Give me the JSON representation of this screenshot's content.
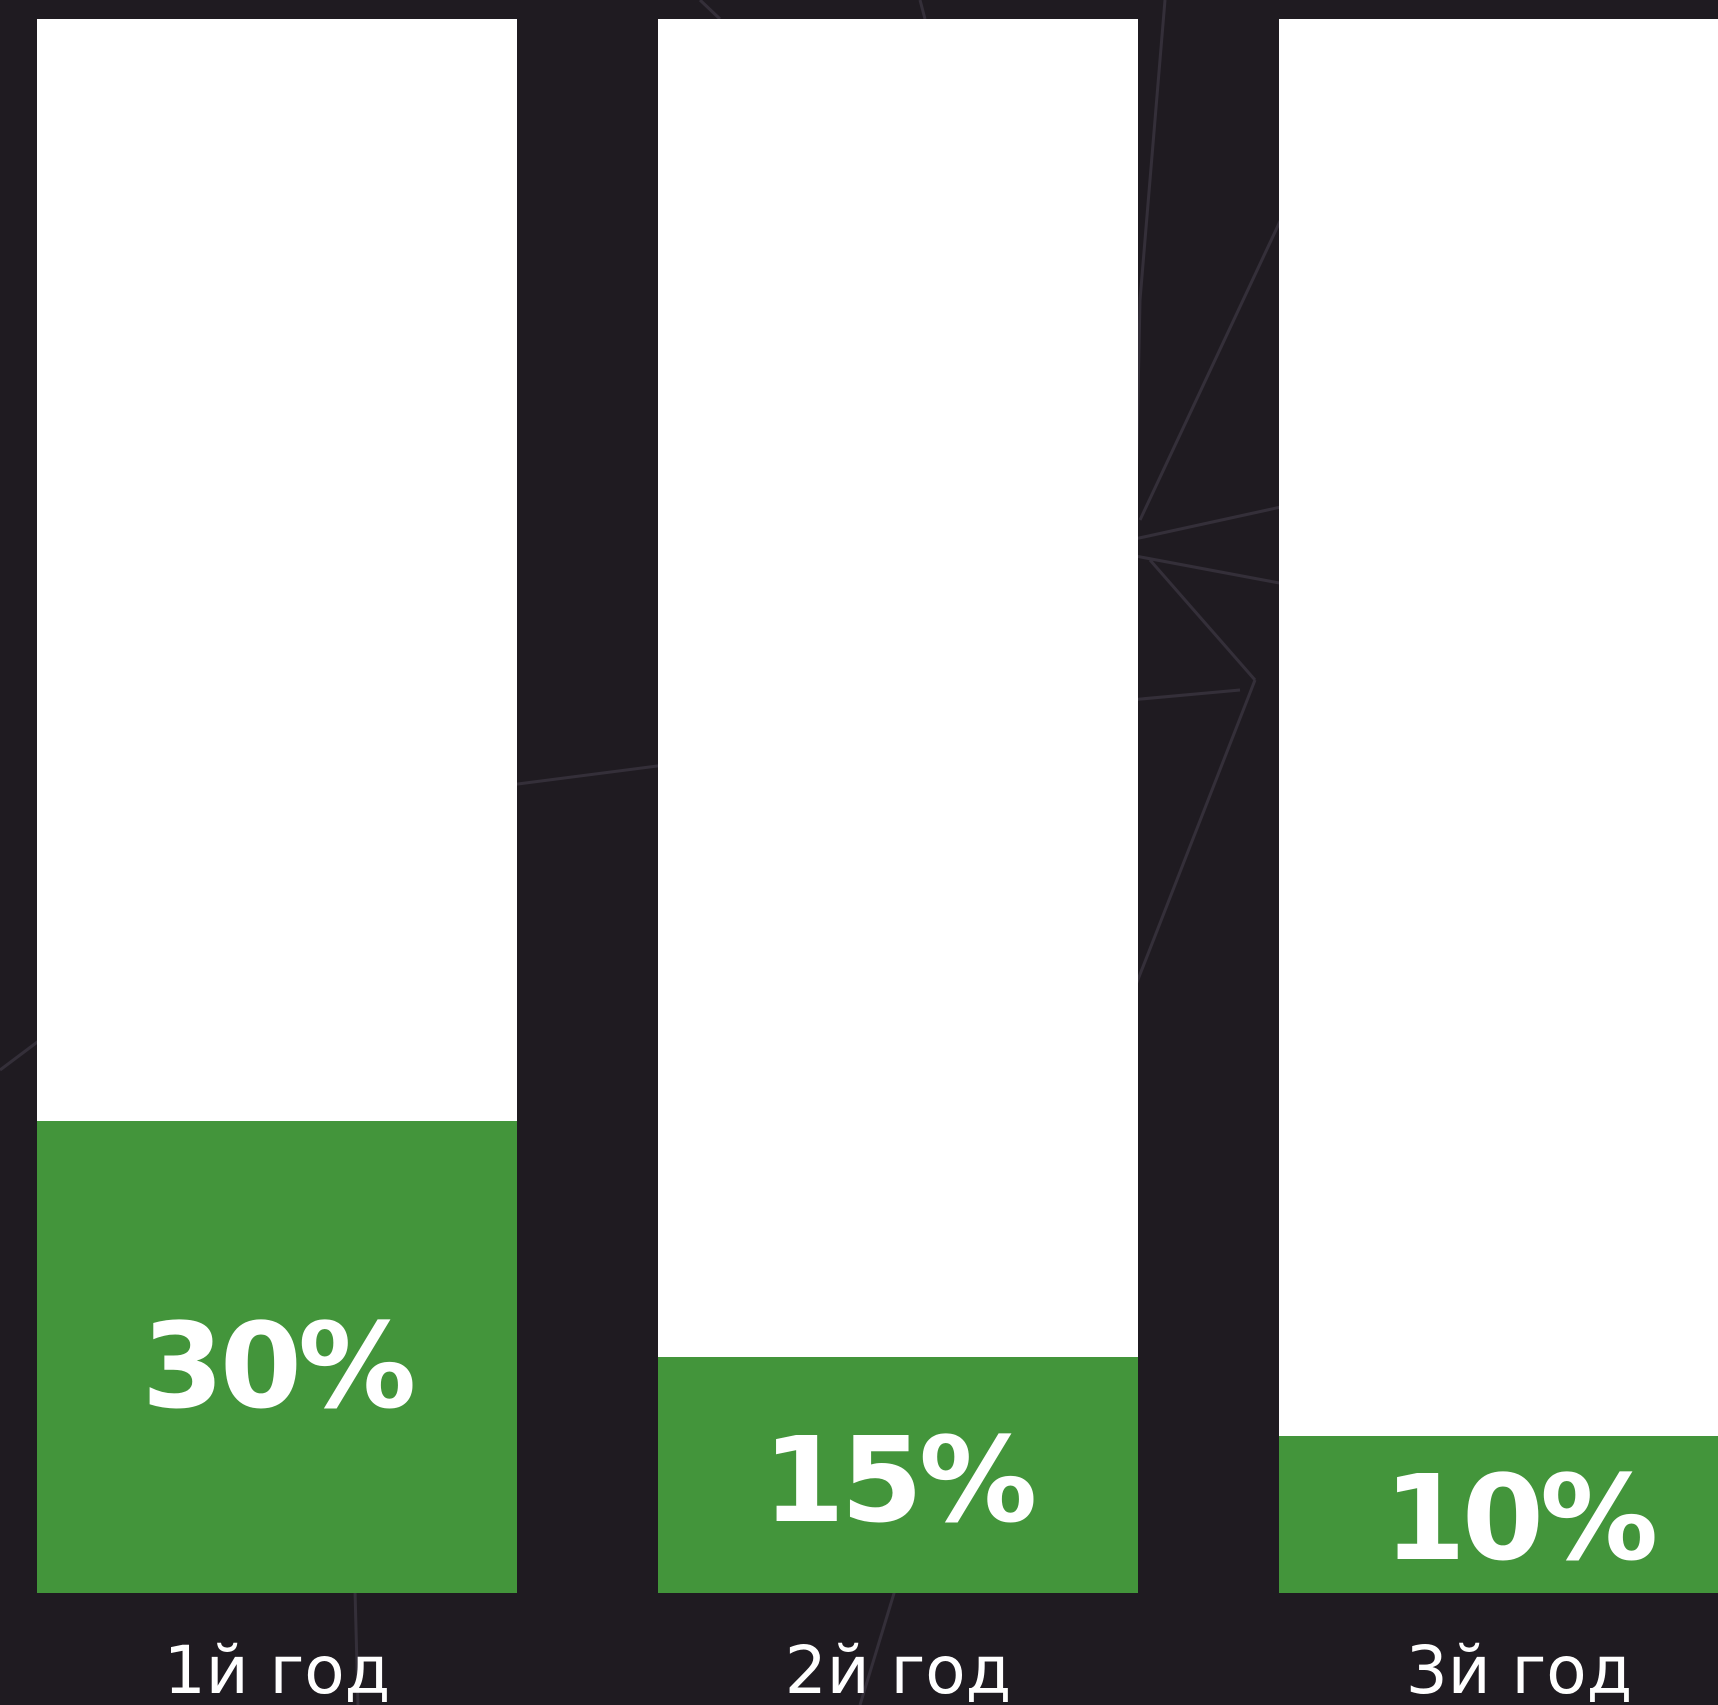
{
  "colors": {
    "background": "#1f1b21",
    "bar_track": "#ffffff",
    "bar_fill": "#43953b",
    "text": "#ffffff"
  },
  "chart_data": {
    "type": "bar",
    "categories": [
      "1й год",
      "2й год",
      "3й год"
    ],
    "values": [
      30,
      15,
      10
    ],
    "value_labels": [
      "30%",
      "15%",
      "10%"
    ],
    "ylim": [
      0,
      100
    ],
    "title": "",
    "xlabel": "",
    "ylabel": "",
    "grid": false
  }
}
